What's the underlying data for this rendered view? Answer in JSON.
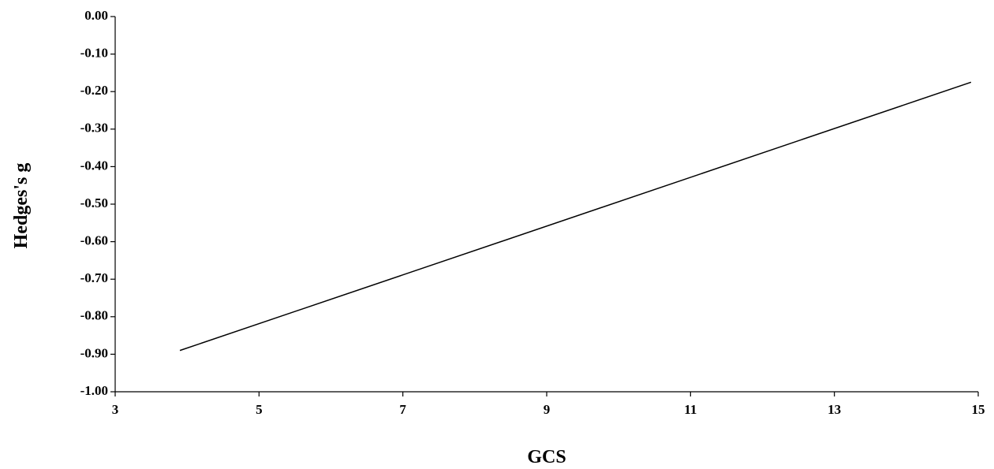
{
  "chart_data": {
    "type": "line",
    "title": "",
    "xlabel": "GCS",
    "ylabel": "Hedges's g",
    "xlim": [
      3,
      15
    ],
    "ylim": [
      -1.0,
      0.0
    ],
    "x_ticks": [
      "3",
      "5",
      "7",
      "9",
      "11",
      "13",
      "15"
    ],
    "y_ticks": [
      "0.00",
      "-0.10",
      "-0.20",
      "-0.30",
      "-0.40",
      "-0.50",
      "-0.60",
      "-0.70",
      "-0.80",
      "-0.90",
      "-1.00"
    ],
    "grid": false,
    "legend": "none",
    "series": [
      {
        "x": [
          3.9,
          14.9
        ],
        "y": [
          -0.89,
          -0.175
        ]
      }
    ],
    "colors": {
      "line": "#000000",
      "axis": "#000000",
      "text": "#000000"
    }
  }
}
